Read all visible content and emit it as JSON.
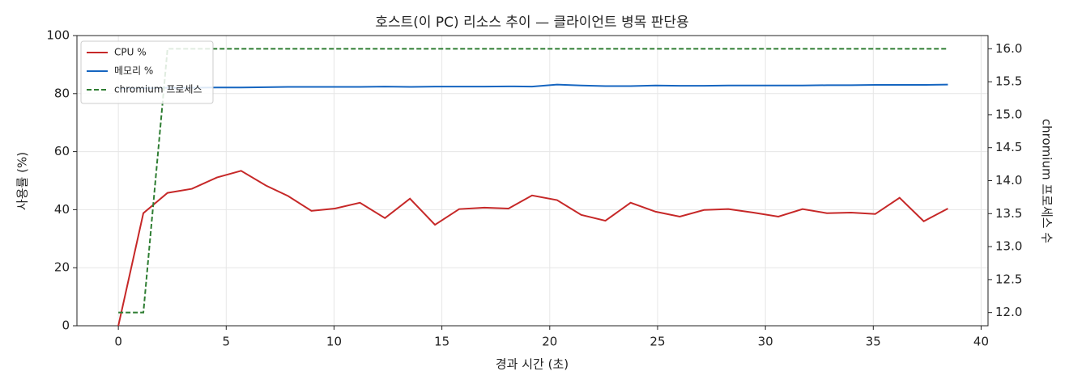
{
  "chart_data": {
    "type": "line",
    "title": "호스트(이 PC) 리소스 추이 — 클라이언트 병목 판단용",
    "x_label": "경과 시간 (초)",
    "y_label": "사용률 (%)",
    "y2_label": "chromium 프로세스 수",
    "x": [
      0,
      1.16,
      2.28,
      3.41,
      4.57,
      5.69,
      6.85,
      7.87,
      8.95,
      10.04,
      11.2,
      12.36,
      13.52,
      14.68,
      15.8,
      16.97,
      18.09,
      19.18,
      20.34,
      21.46,
      22.58,
      23.75,
      24.91,
      26.03,
      27.15,
      28.28,
      29.44,
      30.6,
      31.72,
      32.85,
      33.97,
      35.09,
      36.22,
      37.34,
      38.46
    ],
    "series": [
      {
        "name": "CPU %",
        "color": "#c62828",
        "linestyle": "solid",
        "values": [
          0,
          38.8,
          45.8,
          47.2,
          51.1,
          53.4,
          48.3,
          44.7,
          39.6,
          40.4,
          42.4,
          37.1,
          43.8,
          34.8,
          40.2,
          40.7,
          40.4,
          44.9,
          43.3,
          38.2,
          36.2,
          42.4,
          39.3,
          37.6,
          39.9,
          40.2,
          39.0,
          37.6,
          40.2,
          38.8,
          39.0,
          38.5,
          44.1,
          36.0,
          40.4
        ]
      },
      {
        "name": "메모리 %",
        "color": "#1565c0",
        "linestyle": "solid",
        "values": [
          81.8,
          81.9,
          82.0,
          82.0,
          82.1,
          82.1,
          82.2,
          82.3,
          82.3,
          82.3,
          82.3,
          82.4,
          82.3,
          82.4,
          82.4,
          82.4,
          82.5,
          82.4,
          83.1,
          82.8,
          82.6,
          82.6,
          82.8,
          82.7,
          82.7,
          82.8,
          82.8,
          82.8,
          82.8,
          82.9,
          82.9,
          83.0,
          83.0,
          83.0,
          83.1
        ]
      },
      {
        "name": "chromium 프로세스",
        "color": "#2e7d32",
        "linestyle": "dashed",
        "axis": "y2",
        "values": [
          12,
          12,
          16,
          16,
          16,
          16,
          16,
          16,
          16,
          16,
          16,
          16,
          16,
          16,
          16,
          16,
          16,
          16,
          16,
          16,
          16,
          16,
          16,
          16,
          16,
          16,
          16,
          16,
          16,
          16,
          16,
          16,
          16,
          16,
          16
        ]
      }
    ],
    "xlim": [
      -1.92,
      40.32
    ],
    "xticks": [
      0,
      5,
      10,
      15,
      20,
      25,
      30,
      35,
      40
    ],
    "ylim": [
      0,
      100
    ],
    "yticks": [
      0,
      20,
      40,
      60,
      80,
      100
    ],
    "y2lim": [
      11.8,
      16.2
    ],
    "y2ticks": [
      {
        "value": 12,
        "label": "12.0"
      },
      12.5,
      {
        "value": 13,
        "label": "13.0"
      },
      13.5,
      {
        "value": 14,
        "label": "14.0"
      },
      14.5,
      {
        "value": 15,
        "label": "15.0"
      },
      15.5,
      {
        "value": 16,
        "label": "16.0"
      }
    ],
    "grid": true,
    "legend": "upper-left"
  }
}
